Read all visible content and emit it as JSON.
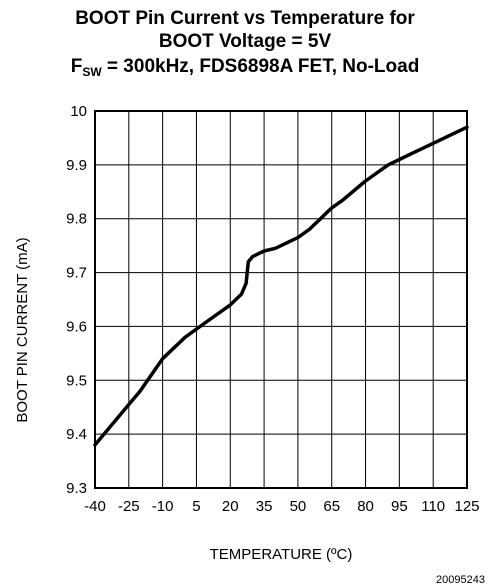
{
  "chart_data": {
    "type": "line",
    "title_lines": [
      "BOOT Pin Current vs Temperature for",
      "BOOT Voltage = 5V"
    ],
    "title_line3": {
      "prefix": "F",
      "subscript": "SW",
      "rest": " = 300kHz, FDS6898A FET, No-Load"
    },
    "xlabel": "TEMPERATURE (ºC)",
    "ylabel": "BOOT PIN CURRENT (mA)",
    "xlim": [
      -40,
      125
    ],
    "ylim": [
      9.3,
      10.0
    ],
    "x_ticks": [
      "-40",
      "-25",
      "-10",
      "5",
      "20",
      "35",
      "50",
      "65",
      "80",
      "95",
      "110",
      "125"
    ],
    "y_ticks": [
      "10",
      "9.9",
      "9.8",
      "9.7",
      "9.6",
      "9.5",
      "9.4",
      "9.3"
    ],
    "grid": true,
    "series": [
      {
        "color": "#000000",
        "x": [
          -40,
          -30,
          -20,
          -10,
          0,
          10,
          20,
          25,
          27,
          28,
          30,
          35,
          40,
          50,
          55,
          60,
          65,
          70,
          80,
          90,
          95,
          100,
          110,
          125
        ],
        "y": [
          9.38,
          9.43,
          9.48,
          9.54,
          9.58,
          9.61,
          9.64,
          9.66,
          9.68,
          9.72,
          9.73,
          9.74,
          9.745,
          9.765,
          9.78,
          9.8,
          9.82,
          9.835,
          9.87,
          9.9,
          9.91,
          9.92,
          9.94,
          9.97
        ]
      }
    ]
  },
  "figure_id": "20095243"
}
